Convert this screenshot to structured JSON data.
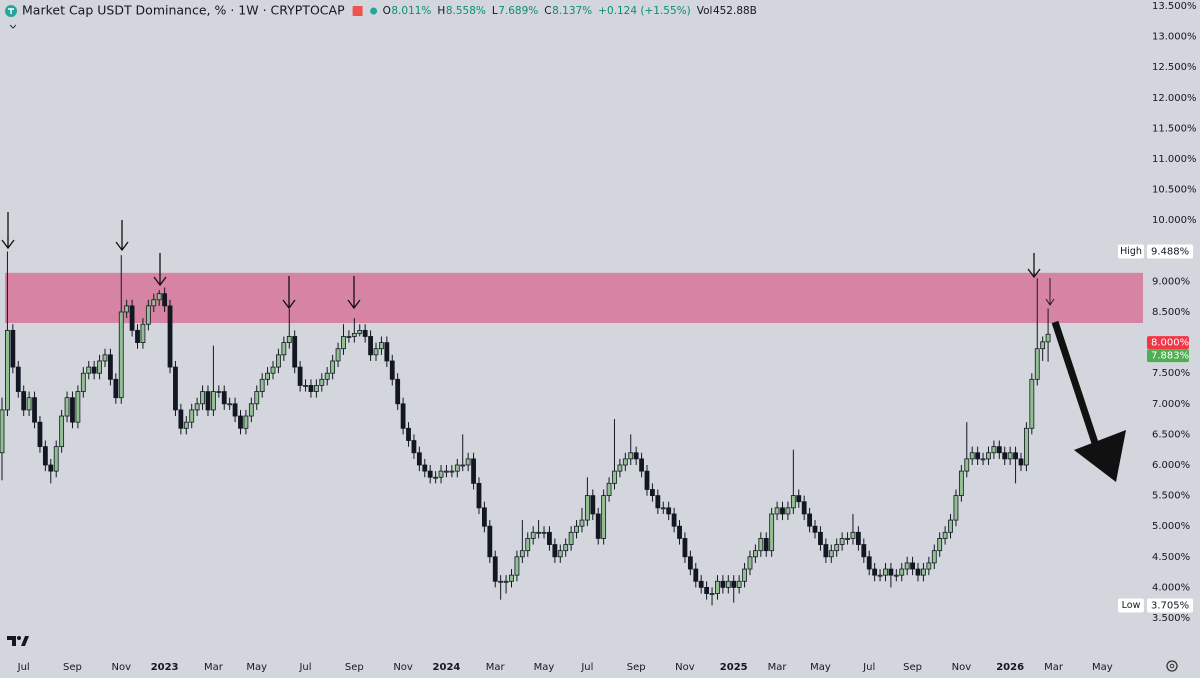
{
  "chart_data": {
    "type": "candlestick",
    "title": "Market Cap USDT Dominance, % · 1W · CRYPTOCAP",
    "legend": {
      "ohlc": [
        {
          "key": "O",
          "value": "8.011%"
        },
        {
          "key": "H",
          "value": "8.558%"
        },
        {
          "key": "L",
          "value": "7.689%"
        },
        {
          "key": "C",
          "value": "8.137%"
        }
      ],
      "change": "+0.124 (+1.55%)",
      "volume": {
        "key": "Vol",
        "value": "452.88B"
      }
    },
    "up_color": "#93c093",
    "down_color": "#131722",
    "ylim": [
      3.5,
      13.5
    ],
    "yticks": [
      {
        "value": 3.5,
        "label": "3.500%"
      },
      {
        "value": 4.0,
        "label": "4.000%"
      },
      {
        "value": 4.5,
        "label": "4.500%"
      },
      {
        "value": 5.0,
        "label": "5.000%"
      },
      {
        "value": 5.5,
        "label": "5.500%"
      },
      {
        "value": 6.0,
        "label": "6.000%"
      },
      {
        "value": 6.5,
        "label": "6.500%"
      },
      {
        "value": 7.0,
        "label": "7.000%"
      },
      {
        "value": 7.5,
        "label": "7.500%"
      },
      {
        "value": 8.5,
        "label": "8.500%"
      },
      {
        "value": 9.0,
        "label": "9.000%"
      },
      {
        "value": 10.0,
        "label": "10.000%"
      },
      {
        "value": 10.5,
        "label": "10.500%"
      },
      {
        "value": 11.0,
        "label": "11.000%"
      },
      {
        "value": 11.5,
        "label": "11.500%"
      },
      {
        "value": 12.0,
        "label": "12.000%"
      },
      {
        "value": 12.5,
        "label": "12.500%"
      },
      {
        "value": 13.0,
        "label": "13.000%"
      },
      {
        "value": 13.5,
        "label": "13.500%"
      }
    ],
    "extremes": [
      {
        "name": "High",
        "value": 9.488,
        "label": "9.488%"
      },
      {
        "name": "Low",
        "value": 3.705,
        "label": "3.705%"
      }
    ],
    "price_badges": [
      {
        "value": 8.0,
        "label": "8.000%",
        "color": "#f23645"
      },
      {
        "value": 7.883,
        "label": "7.883%",
        "color": "#4caf50"
      }
    ],
    "zone": {
      "low": 8.32,
      "high": 9.14,
      "color": "#d77a9c"
    },
    "categories": [
      null,
      null,
      null,
      null,
      "Jul",
      null,
      null,
      null,
      null,
      null,
      null,
      null,
      null,
      "Sep",
      null,
      null,
      null,
      null,
      null,
      null,
      null,
      null,
      "Nov",
      null,
      null,
      null,
      null,
      null,
      null,
      null,
      "2023",
      null,
      null,
      null,
      null,
      null,
      null,
      null,
      null,
      "Mar",
      null,
      null,
      null,
      null,
      null,
      null,
      null,
      "May",
      null,
      null,
      null,
      null,
      null,
      null,
      null,
      null,
      "Jul",
      null,
      null,
      null,
      null,
      null,
      null,
      null,
      null,
      "Sep",
      null,
      null,
      null,
      null,
      null,
      null,
      null,
      null,
      "Nov",
      null,
      null,
      null,
      null,
      null,
      null,
      null,
      "2024",
      null,
      null,
      null,
      null,
      null,
      null,
      null,
      null,
      "Mar",
      null,
      null,
      null,
      null,
      null,
      null,
      null,
      null,
      "May",
      null,
      null,
      null,
      null,
      null,
      null,
      null,
      "Jul",
      null,
      null,
      null,
      null,
      null,
      null,
      null,
      null,
      "Sep",
      null,
      null,
      null,
      null,
      null,
      null,
      null,
      null,
      "Nov",
      null,
      null,
      null,
      null,
      null,
      null,
      null,
      null,
      "2025",
      null,
      null,
      null,
      null,
      null,
      null,
      null,
      "Mar",
      null,
      null,
      null,
      null,
      null,
      null,
      null,
      "May",
      null,
      null,
      null,
      null,
      null,
      null,
      null,
      null,
      "Jul",
      null,
      null,
      null,
      null,
      null,
      null,
      null,
      "Sep",
      null,
      null,
      null,
      null,
      null,
      null,
      null,
      null,
      "Nov",
      null,
      null,
      null,
      null,
      null,
      null,
      null,
      null,
      "2026",
      null,
      null,
      null,
      null,
      null,
      null,
      null,
      "Mar",
      null,
      null,
      null,
      null,
      null,
      null,
      null,
      null,
      "May"
    ],
    "candles": [
      [
        6.2,
        7.1,
        5.75,
        6.9
      ],
      [
        6.9,
        9.488,
        6.8,
        8.2
      ],
      [
        8.2,
        8.3,
        7.5,
        7.6
      ],
      [
        7.6,
        7.7,
        7.1,
        7.2
      ],
      [
        7.2,
        7.3,
        6.8,
        6.9
      ],
      [
        6.9,
        7.2,
        6.8,
        7.1
      ],
      [
        7.1,
        7.2,
        6.6,
        6.7
      ],
      [
        6.7,
        6.8,
        6.2,
        6.3
      ],
      [
        6.3,
        6.4,
        5.9,
        6.0
      ],
      [
        6.0,
        6.1,
        5.7,
        5.9
      ],
      [
        5.9,
        6.4,
        5.8,
        6.3
      ],
      [
        6.3,
        6.9,
        6.2,
        6.8
      ],
      [
        6.8,
        7.2,
        6.7,
        7.1
      ],
      [
        7.1,
        7.2,
        6.6,
        6.7
      ],
      [
        6.7,
        7.3,
        6.6,
        7.2
      ],
      [
        7.2,
        7.6,
        7.1,
        7.5
      ],
      [
        7.5,
        7.7,
        7.4,
        7.6
      ],
      [
        7.6,
        7.7,
        7.4,
        7.5
      ],
      [
        7.5,
        7.8,
        7.4,
        7.7
      ],
      [
        7.7,
        7.9,
        7.6,
        7.8
      ],
      [
        7.8,
        7.9,
        7.3,
        7.4
      ],
      [
        7.4,
        7.5,
        7.0,
        7.1
      ],
      [
        7.1,
        9.43,
        7.0,
        8.5
      ],
      [
        8.5,
        8.7,
        8.4,
        8.6
      ],
      [
        8.6,
        8.7,
        8.1,
        8.2
      ],
      [
        8.2,
        8.3,
        7.9,
        8.0
      ],
      [
        8.0,
        8.4,
        7.9,
        8.3
      ],
      [
        8.3,
        8.7,
        8.2,
        8.6
      ],
      [
        8.6,
        8.8,
        8.5,
        8.7
      ],
      [
        8.7,
        8.86,
        8.6,
        8.8
      ],
      [
        8.8,
        8.9,
        8.5,
        8.6
      ],
      [
        8.6,
        8.7,
        7.5,
        7.6
      ],
      [
        7.6,
        7.7,
        6.8,
        6.9
      ],
      [
        6.9,
        7.0,
        6.5,
        6.6
      ],
      [
        6.6,
        6.8,
        6.5,
        6.7
      ],
      [
        6.7,
        7.0,
        6.6,
        6.9
      ],
      [
        6.9,
        7.1,
        6.8,
        7.0
      ],
      [
        7.0,
        7.3,
        6.9,
        7.2
      ],
      [
        7.2,
        7.3,
        6.8,
        6.9
      ],
      [
        6.9,
        7.95,
        6.8,
        7.2
      ],
      [
        7.2,
        7.3,
        7.1,
        7.2
      ],
      [
        7.2,
        7.3,
        6.9,
        7.0
      ],
      [
        7.0,
        7.1,
        6.9,
        7.0
      ],
      [
        7.0,
        7.1,
        6.7,
        6.8
      ],
      [
        6.8,
        6.9,
        6.5,
        6.6
      ],
      [
        6.6,
        6.9,
        6.5,
        6.8
      ],
      [
        6.8,
        7.1,
        6.7,
        7.0
      ],
      [
        7.0,
        7.3,
        6.9,
        7.2
      ],
      [
        7.2,
        7.5,
        7.1,
        7.4
      ],
      [
        7.4,
        7.6,
        7.3,
        7.5
      ],
      [
        7.5,
        7.7,
        7.4,
        7.6
      ],
      [
        7.6,
        7.9,
        7.5,
        7.8
      ],
      [
        7.8,
        8.1,
        7.7,
        8.0
      ],
      [
        8.0,
        8.55,
        7.9,
        8.1
      ],
      [
        8.1,
        8.2,
        7.5,
        7.6
      ],
      [
        7.6,
        7.7,
        7.2,
        7.3
      ],
      [
        7.3,
        7.4,
        7.2,
        7.3
      ],
      [
        7.3,
        7.4,
        7.1,
        7.2
      ],
      [
        7.2,
        7.4,
        7.1,
        7.3
      ],
      [
        7.3,
        7.5,
        7.2,
        7.4
      ],
      [
        7.4,
        7.6,
        7.3,
        7.5
      ],
      [
        7.5,
        7.8,
        7.4,
        7.7
      ],
      [
        7.7,
        8.0,
        7.6,
        7.9
      ],
      [
        7.9,
        8.3,
        7.8,
        8.1
      ],
      [
        8.1,
        8.2,
        8.0,
        8.1
      ],
      [
        8.1,
        8.4,
        8.0,
        8.15
      ],
      [
        8.15,
        8.3,
        8.1,
        8.2
      ],
      [
        8.2,
        8.3,
        8.0,
        8.1
      ],
      [
        8.1,
        8.2,
        7.7,
        7.8
      ],
      [
        7.8,
        8.0,
        7.7,
        7.9
      ],
      [
        7.9,
        8.1,
        7.8,
        8.0
      ],
      [
        8.0,
        8.1,
        7.6,
        7.7
      ],
      [
        7.7,
        7.8,
        7.3,
        7.4
      ],
      [
        7.4,
        7.5,
        6.9,
        7.0
      ],
      [
        7.0,
        7.1,
        6.5,
        6.6
      ],
      [
        6.6,
        6.7,
        6.3,
        6.4
      ],
      [
        6.4,
        6.5,
        6.1,
        6.2
      ],
      [
        6.2,
        6.3,
        5.9,
        6.0
      ],
      [
        6.0,
        6.1,
        5.8,
        5.9
      ],
      [
        5.9,
        6.0,
        5.7,
        5.8
      ],
      [
        5.8,
        5.9,
        5.7,
        5.8
      ],
      [
        5.8,
        6.0,
        5.7,
        5.9
      ],
      [
        5.9,
        6.0,
        5.8,
        5.9
      ],
      [
        5.9,
        6.0,
        5.8,
        5.9
      ],
      [
        5.9,
        6.1,
        5.8,
        6.0
      ],
      [
        6.0,
        6.5,
        5.9,
        6.0
      ],
      [
        6.0,
        6.2,
        5.9,
        6.1
      ],
      [
        6.1,
        6.2,
        5.6,
        5.7
      ],
      [
        5.7,
        5.8,
        5.2,
        5.3
      ],
      [
        5.3,
        5.4,
        4.9,
        5.0
      ],
      [
        5.0,
        5.1,
        4.4,
        4.5
      ],
      [
        4.5,
        4.6,
        4.0,
        4.1
      ],
      [
        4.1,
        4.2,
        3.8,
        4.1
      ],
      [
        4.1,
        4.2,
        3.9,
        4.1
      ],
      [
        4.1,
        4.3,
        4.0,
        4.2
      ],
      [
        4.2,
        4.6,
        4.1,
        4.5
      ],
      [
        4.5,
        5.1,
        4.4,
        4.6
      ],
      [
        4.6,
        4.9,
        4.5,
        4.8
      ],
      [
        4.8,
        5.0,
        4.7,
        4.9
      ],
      [
        4.9,
        5.1,
        4.8,
        4.9
      ],
      [
        4.9,
        5.0,
        4.8,
        4.9
      ],
      [
        4.9,
        5.0,
        4.6,
        4.7
      ],
      [
        4.7,
        4.8,
        4.4,
        4.5
      ],
      [
        4.5,
        4.7,
        4.4,
        4.6
      ],
      [
        4.6,
        4.8,
        4.5,
        4.7
      ],
      [
        4.7,
        5.0,
        4.6,
        4.9
      ],
      [
        4.9,
        5.1,
        4.8,
        5.0
      ],
      [
        5.0,
        5.3,
        4.9,
        5.1
      ],
      [
        5.1,
        5.8,
        5.0,
        5.5
      ],
      [
        5.5,
        5.6,
        5.1,
        5.2
      ],
      [
        5.2,
        5.3,
        4.7,
        4.8
      ],
      [
        4.8,
        5.6,
        4.7,
        5.5
      ],
      [
        5.5,
        5.8,
        5.4,
        5.7
      ],
      [
        5.7,
        6.75,
        5.6,
        5.9
      ],
      [
        5.9,
        6.1,
        5.8,
        6.0
      ],
      [
        6.0,
        6.2,
        5.9,
        6.1
      ],
      [
        6.1,
        6.5,
        6.0,
        6.2
      ],
      [
        6.2,
        6.3,
        6.0,
        6.1
      ],
      [
        6.1,
        6.2,
        5.8,
        5.9
      ],
      [
        5.9,
        6.0,
        5.5,
        5.6
      ],
      [
        5.6,
        5.7,
        5.4,
        5.5
      ],
      [
        5.5,
        5.6,
        5.2,
        5.3
      ],
      [
        5.3,
        5.4,
        5.2,
        5.3
      ],
      [
        5.3,
        5.4,
        5.1,
        5.2
      ],
      [
        5.2,
        5.3,
        4.9,
        5.0
      ],
      [
        5.0,
        5.1,
        4.7,
        4.8
      ],
      [
        4.8,
        4.9,
        4.4,
        4.5
      ],
      [
        4.5,
        4.6,
        4.2,
        4.3
      ],
      [
        4.3,
        4.4,
        4.0,
        4.1
      ],
      [
        4.1,
        4.2,
        3.9,
        4.0
      ],
      [
        4.0,
        4.1,
        3.8,
        3.9
      ],
      [
        3.9,
        4.0,
        3.705,
        3.9
      ],
      [
        3.9,
        4.2,
        3.8,
        4.1
      ],
      [
        4.1,
        4.2,
        3.9,
        4.0
      ],
      [
        4.0,
        4.2,
        3.9,
        4.1
      ],
      [
        4.1,
        4.2,
        3.75,
        4.0
      ],
      [
        4.0,
        4.2,
        3.9,
        4.1
      ],
      [
        4.1,
        4.4,
        4.0,
        4.3
      ],
      [
        4.3,
        4.6,
        4.2,
        4.5
      ],
      [
        4.5,
        4.7,
        4.4,
        4.6
      ],
      [
        4.6,
        4.9,
        4.5,
        4.8
      ],
      [
        4.8,
        4.9,
        4.5,
        4.6
      ],
      [
        4.6,
        5.3,
        4.5,
        5.2
      ],
      [
        5.2,
        5.4,
        5.1,
        5.3
      ],
      [
        5.3,
        5.4,
        5.1,
        5.2
      ],
      [
        5.2,
        5.4,
        5.1,
        5.3
      ],
      [
        5.3,
        6.25,
        5.2,
        5.5
      ],
      [
        5.5,
        5.6,
        5.3,
        5.4
      ],
      [
        5.4,
        5.5,
        5.1,
        5.2
      ],
      [
        5.2,
        5.3,
        4.9,
        5.0
      ],
      [
        5.0,
        5.1,
        4.8,
        4.9
      ],
      [
        4.9,
        5.0,
        4.6,
        4.7
      ],
      [
        4.7,
        4.8,
        4.4,
        4.5
      ],
      [
        4.5,
        4.7,
        4.4,
        4.6
      ],
      [
        4.6,
        4.8,
        4.5,
        4.7
      ],
      [
        4.7,
        4.9,
        4.6,
        4.8
      ],
      [
        4.8,
        4.9,
        4.7,
        4.8
      ],
      [
        4.8,
        5.2,
        4.7,
        4.9
      ],
      [
        4.9,
        5.0,
        4.6,
        4.7
      ],
      [
        4.7,
        4.8,
        4.4,
        4.5
      ],
      [
        4.5,
        4.6,
        4.2,
        4.3
      ],
      [
        4.3,
        4.4,
        4.1,
        4.2
      ],
      [
        4.2,
        4.3,
        4.1,
        4.2
      ],
      [
        4.2,
        4.4,
        4.1,
        4.3
      ],
      [
        4.3,
        4.4,
        4.0,
        4.2
      ],
      [
        4.2,
        4.3,
        4.1,
        4.2
      ],
      [
        4.2,
        4.4,
        4.1,
        4.3
      ],
      [
        4.3,
        4.5,
        4.2,
        4.4
      ],
      [
        4.4,
        4.5,
        4.2,
        4.3
      ],
      [
        4.3,
        4.4,
        4.1,
        4.2
      ],
      [
        4.2,
        4.4,
        4.1,
        4.3
      ],
      [
        4.3,
        4.5,
        4.2,
        4.4
      ],
      [
        4.4,
        4.7,
        4.3,
        4.6
      ],
      [
        4.6,
        4.9,
        4.5,
        4.8
      ],
      [
        4.8,
        5.0,
        4.7,
        4.9
      ],
      [
        4.9,
        5.2,
        4.8,
        5.1
      ],
      [
        5.1,
        5.6,
        5.0,
        5.5
      ],
      [
        5.5,
        6.0,
        5.4,
        5.9
      ],
      [
        5.9,
        6.7,
        5.8,
        6.1
      ],
      [
        6.1,
        6.3,
        6.0,
        6.2
      ],
      [
        6.2,
        6.3,
        6.0,
        6.1
      ],
      [
        6.1,
        6.2,
        6.0,
        6.1
      ],
      [
        6.1,
        6.3,
        6.0,
        6.2
      ],
      [
        6.2,
        6.4,
        6.1,
        6.3
      ],
      [
        6.3,
        6.4,
        6.1,
        6.2
      ],
      [
        6.2,
        6.3,
        6.0,
        6.1
      ],
      [
        6.1,
        6.3,
        6.0,
        6.2
      ],
      [
        6.2,
        6.3,
        5.7,
        6.1
      ],
      [
        6.1,
        6.2,
        5.9,
        6.0
      ],
      [
        6.0,
        6.7,
        5.9,
        6.6
      ],
      [
        6.6,
        7.5,
        6.5,
        7.4
      ],
      [
        7.4,
        9.05,
        7.3,
        7.9
      ],
      [
        7.9,
        8.1,
        7.7,
        8.013
      ],
      [
        8.011,
        8.558,
        7.689,
        8.137
      ],
      null,
      null,
      null,
      null,
      null,
      null,
      null,
      null,
      null,
      null
    ]
  }
}
